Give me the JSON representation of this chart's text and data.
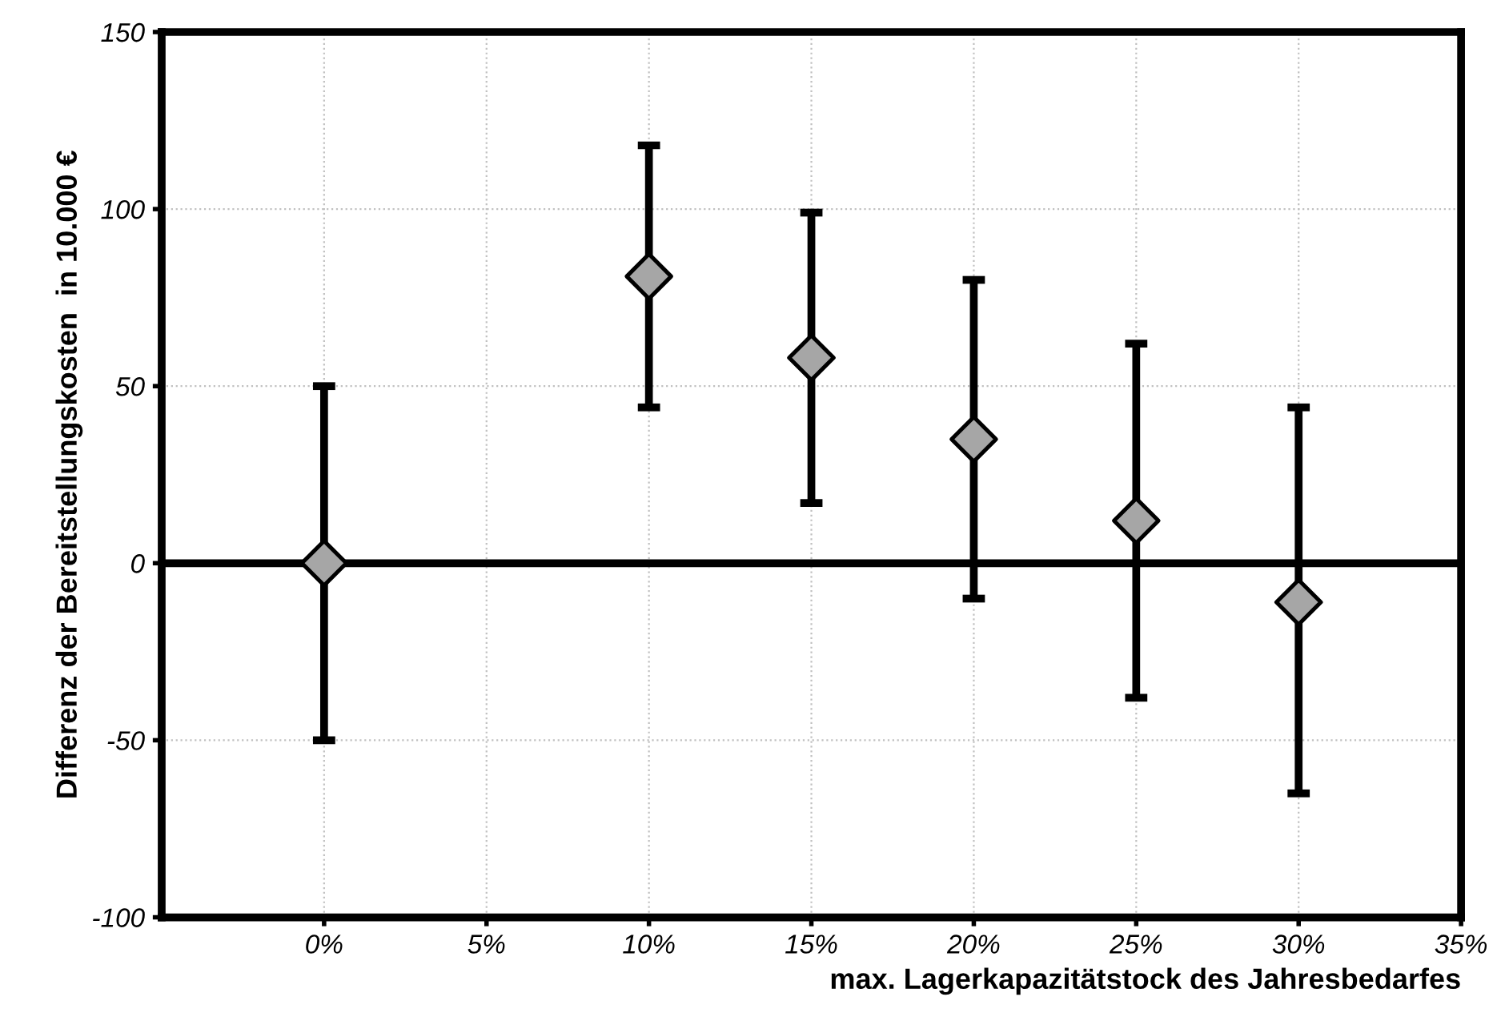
{
  "chart_data": {
    "type": "scatter",
    "xlabel": "max. Lagerkapazitätstock des Jahresbedarfes",
    "ylabel": "Differenz der Bereitstellungskosten  in 10.000 €",
    "x": [
      0,
      10,
      15,
      20,
      25,
      30
    ],
    "values": [
      0,
      81,
      58,
      35,
      12,
      -11
    ],
    "errors": [
      [
        -50,
        50
      ],
      [
        44,
        118
      ],
      [
        17,
        99
      ],
      [
        -10,
        80
      ],
      [
        -38,
        62
      ],
      [
        -65,
        44
      ]
    ],
    "color": "#a6a6a6",
    "marker": "diamond",
    "xlim": [
      -5,
      35
    ],
    "xticks": [
      {
        "value": 0,
        "label": "0%"
      },
      {
        "value": 5,
        "label": "5%"
      },
      {
        "value": 10,
        "label": "10%"
      },
      {
        "value": 15,
        "label": "15%"
      },
      {
        "value": 20,
        "label": "20%"
      },
      {
        "value": 25,
        "label": "25%"
      },
      {
        "value": 30,
        "label": "30%"
      },
      {
        "value": 35,
        "label": "35%"
      }
    ],
    "ylim": [
      -100,
      150
    ],
    "yticks": [
      {
        "value": -100,
        "label": "-100"
      },
      {
        "value": -50,
        "label": "-50"
      },
      0,
      50,
      100,
      150
    ],
    "ref_lines": [
      {
        "axis": "y",
        "value": 0,
        "color": "#000000"
      }
    ],
    "grid": true
  }
}
